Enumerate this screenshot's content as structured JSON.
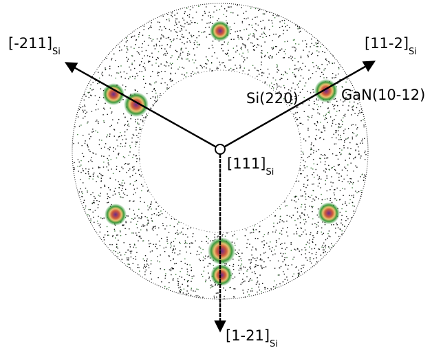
{
  "labels": {
    "dir_211": {
      "text": "[-211]",
      "sub": "Si"
    },
    "dir_112": {
      "text": "[11-2]",
      "sub": "Si"
    },
    "dir_111": {
      "text": "[111]",
      "sub": "Si"
    },
    "dir_121": {
      "text": "[1-21]",
      "sub": "Si"
    },
    "si220": "Si(220)",
    "gan": "GaN(10-12)"
  }
}
